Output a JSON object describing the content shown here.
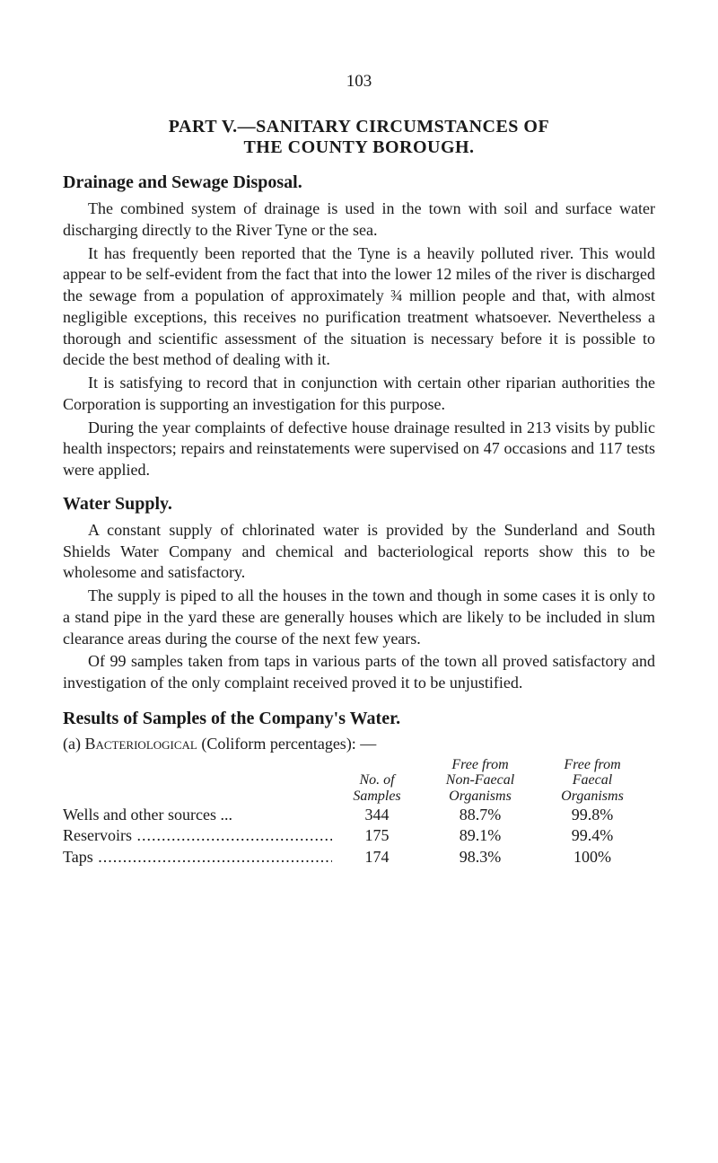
{
  "page_number": "103",
  "title": {
    "line1": "PART V.—SANITARY CIRCUMSTANCES OF",
    "line2": "THE COUNTY BOROUGH."
  },
  "section1": {
    "header": "Drainage and Sewage Disposal.",
    "p1": "The combined system of drainage is used in the town with soil and surface water discharging directly to the River Tyne or the sea.",
    "p2": "It has frequently been reported that the Tyne is a heavily polluted river. This would appear to be self-evident from the fact that into the lower 12 miles of the river is discharged the sewage from a population of approximately ¾ million people and that, with almost negligible exceptions, this receives no purification treatment whatsoever. Nevertheless a thorough and scientific assessment of the situation is necessary before it is possible to decide the best method of dealing with it.",
    "p3": "It is satisfying to record that in conjunction with certain other riparian authorities the Corporation is supporting an investigation for this purpose.",
    "p4": "During the year complaints of defective house drainage resulted in 213 visits by public health inspectors; repairs and reinstatements were supervised on 47 occasions and 117 tests were applied."
  },
  "section2": {
    "header": "Water Supply.",
    "p1": "A constant supply of chlorinated water is provided by the Sunderland and South Shields Water Company and chemical and bacteriological reports show this to be wholesome and satisfactory.",
    "p2": "The supply is piped to all the houses in the town and though in some cases it is only to a stand pipe in the yard these are generally houses which are likely to be included in slum clearance areas during the course of the next few years.",
    "p3": "Of 99 samples taken from taps in various parts of the town all proved satisfactory and investigation of the only complaint received proved it to be unjustified."
  },
  "section3": {
    "header": "Results of Samples of the Company's Water.",
    "sub_prefix": "(a)  ",
    "sub_smallcaps": "Bacteriological",
    "sub_suffix": " (Coliform percentages): —",
    "table": {
      "headers": {
        "samples_l1": "No. of",
        "samples_l2": "Samples",
        "nonfaecal_l1": "Free from",
        "nonfaecal_l2": "Non-Faecal",
        "nonfaecal_l3": "Organisms",
        "faecal_l1": "Free from",
        "faecal_l2": "Faecal",
        "faecal_l3": "Organisms"
      },
      "rows": [
        {
          "label": "Wells and other sources ...",
          "samples": "344",
          "nonfaecal": "88.7%",
          "faecal": "99.8%"
        },
        {
          "label": "Reservoirs",
          "samples": "175",
          "nonfaecal": "89.1%",
          "faecal": "99.4%"
        },
        {
          "label": "Taps",
          "samples": "174",
          "nonfaecal": "98.3%",
          "faecal": "100%"
        }
      ]
    }
  }
}
